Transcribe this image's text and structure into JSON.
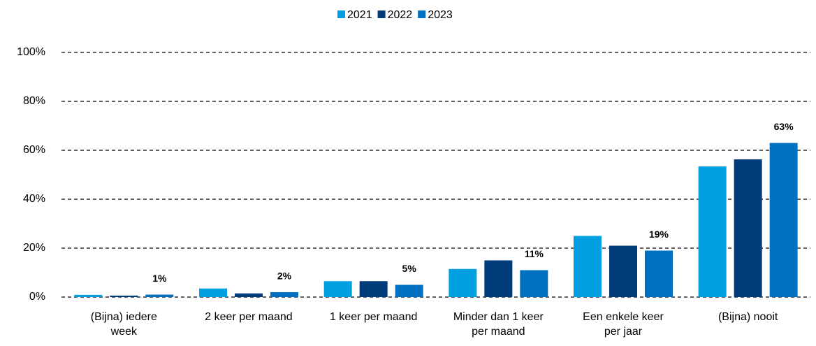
{
  "chart_data": {
    "type": "bar",
    "categories": [
      "(Bijna) iedere\nweek",
      "2 keer per maand",
      "1 keer per maand",
      "Minder dan 1 keer\nper maand",
      "Een enkele keer\nper jaar",
      "(Bijna) nooit"
    ],
    "series": [
      {
        "name": "2021",
        "color": "#00a0e1",
        "values": [
          0.9,
          3.5,
          6.5,
          11.5,
          25,
          53.4
        ]
      },
      {
        "name": "2022",
        "color": "#003b7a",
        "values": [
          0.6,
          1.5,
          6.5,
          15,
          21,
          56.3
        ]
      },
      {
        "name": "2023",
        "color": "#0070c0",
        "values": [
          1,
          2,
          5,
          11,
          19,
          63
        ],
        "value_labels": [
          "1%",
          "2%",
          "5%",
          "11%",
          "19%",
          "63%"
        ]
      }
    ],
    "ylim": [
      0,
      100
    ],
    "yticks": [
      {
        "value": 0,
        "label": "0%"
      },
      {
        "value": 20,
        "label": "20%"
      },
      {
        "value": 40,
        "label": "40%"
      },
      {
        "value": 60,
        "label": "60%"
      },
      {
        "value": 80,
        "label": "80%"
      },
      {
        "value": 100,
        "label": "100%"
      }
    ],
    "grid": true,
    "legend": "top"
  }
}
